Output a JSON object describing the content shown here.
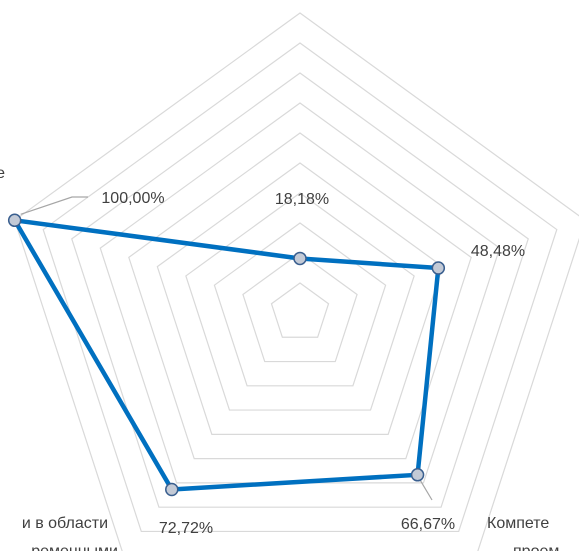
{
  "chart_data": {
    "type": "radar",
    "categories": [
      null,
      null,
      "Компете\nпроем",
      "и в области\nременными",
      "е"
    ],
    "values": [
      18.18,
      48.48,
      66.67,
      72.72,
      100.0
    ],
    "value_labels": [
      "18,18%",
      "48,48%",
      "66,67%",
      "72,72%",
      "100,00%"
    ],
    "color": "#0070c0",
    "marker_color": "#c3cad6",
    "ylim": [
      0,
      100
    ],
    "yticks": [
      10,
      20,
      30,
      40,
      50,
      60,
      70,
      80,
      90,
      100
    ],
    "grid": true
  }
}
